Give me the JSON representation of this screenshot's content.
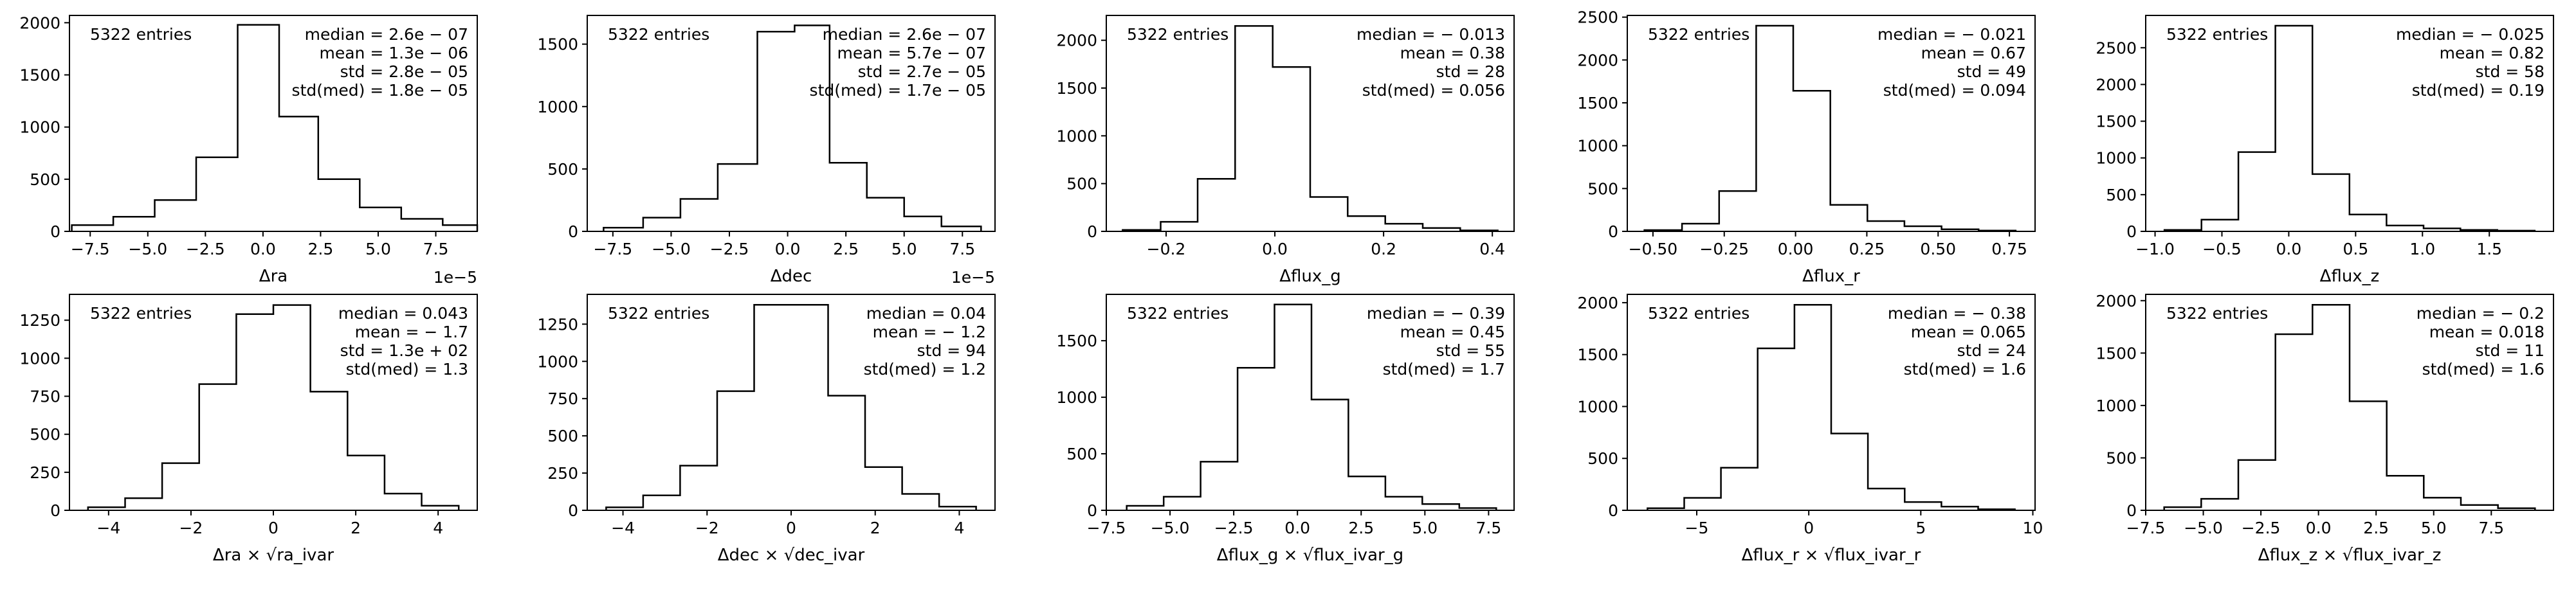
{
  "chart_data": [
    {
      "type": "histogram",
      "xlabel": "Δra",
      "x_offset_label": "1e−5",
      "bins": [
        -8.3,
        -6.5,
        -4.7,
        -2.9,
        -1.1,
        0.7,
        2.4,
        4.2,
        6.0,
        7.8,
        9.3
      ],
      "counts": [
        60,
        140,
        300,
        710,
        1980,
        1100,
        500,
        230,
        120,
        60
      ],
      "xlim": [
        -8.4,
        9.3
      ],
      "ylim": [
        0,
        2070
      ],
      "xticks": [
        {
          "v": -7.5,
          "label": "−7.5"
        },
        {
          "v": -5.0,
          "label": "−5.0"
        },
        {
          "v": -2.5,
          "label": "−2.5"
        },
        {
          "v": 0.0,
          "label": "0.0"
        },
        {
          "v": 2.5,
          "label": "2.5"
        },
        {
          "v": 5.0,
          "label": "5.0"
        },
        {
          "v": 7.5,
          "label": "7.5"
        }
      ],
      "yticks": [
        {
          "v": 0,
          "label": "0"
        },
        {
          "v": 500,
          "label": "500"
        },
        {
          "v": 1000,
          "label": "1000"
        },
        {
          "v": 1500,
          "label": "1500"
        },
        {
          "v": 2000,
          "label": "2000"
        }
      ],
      "entries": "5322 entries",
      "stats": [
        "median = 2.6e − 07",
        "mean = 1.3e − 06",
        "std = 2.8e − 05",
        "std(med) = 1.8e − 05"
      ]
    },
    {
      "type": "histogram",
      "xlabel": "Δdec",
      "x_offset_label": "1e−5",
      "bins": [
        -7.9,
        -6.2,
        -4.6,
        -3.0,
        -1.3,
        0.3,
        1.8,
        3.4,
        5.0,
        6.6,
        8.3
      ],
      "counts": [
        30,
        110,
        260,
        540,
        1600,
        1650,
        550,
        270,
        120,
        40
      ],
      "xlim": [
        -8.6,
        8.9
      ],
      "ylim": [
        0,
        1730
      ],
      "xticks": [
        {
          "v": -7.5,
          "label": "−7.5"
        },
        {
          "v": -5.0,
          "label": "−5.0"
        },
        {
          "v": -2.5,
          "label": "−2.5"
        },
        {
          "v": 0.0,
          "label": "0.0"
        },
        {
          "v": 2.5,
          "label": "2.5"
        },
        {
          "v": 5.0,
          "label": "5.0"
        },
        {
          "v": 7.5,
          "label": "7.5"
        }
      ],
      "yticks": [
        {
          "v": 0,
          "label": "0"
        },
        {
          "v": 500,
          "label": "500"
        },
        {
          "v": 1000,
          "label": "1000"
        },
        {
          "v": 1500,
          "label": "1500"
        }
      ],
      "entries": "5322 entries",
      "stats": [
        "median = 2.6e − 07",
        "mean = 5.7e − 07",
        "std = 2.7e − 05",
        "std(med) = 1.7e − 05"
      ]
    },
    {
      "type": "histogram",
      "xlabel": "Δflux_g",
      "x_offset_label": "",
      "bins": [
        -0.28,
        -0.21,
        -0.142,
        -0.073,
        -0.004,
        0.065,
        0.134,
        0.203,
        0.272,
        0.341,
        0.41
      ],
      "counts": [
        15,
        100,
        550,
        2150,
        1720,
        360,
        160,
        80,
        35,
        10
      ],
      "xlim": [
        -0.31,
        0.44
      ],
      "ylim": [
        0,
        2260
      ],
      "xticks": [
        {
          "v": -0.2,
          "label": "−0.2"
        },
        {
          "v": 0.0,
          "label": "0.0"
        },
        {
          "v": 0.2,
          "label": "0.2"
        },
        {
          "v": 0.4,
          "label": "0.4"
        }
      ],
      "yticks": [
        {
          "v": 0,
          "label": "0"
        },
        {
          "v": 500,
          "label": "500"
        },
        {
          "v": 1000,
          "label": "1000"
        },
        {
          "v": 1500,
          "label": "1500"
        },
        {
          "v": 2000,
          "label": "2000"
        }
      ],
      "entries": "5322 entries",
      "stats": [
        "median = − 0.013",
        "mean = 0.38",
        "std = 28",
        "std(med) = 0.056"
      ]
    },
    {
      "type": "histogram",
      "xlabel": "Δflux_r",
      "x_offset_label": "",
      "bins": [
        -0.53,
        -0.398,
        -0.268,
        -0.138,
        -0.008,
        0.122,
        0.252,
        0.382,
        0.512,
        0.642,
        0.772
      ],
      "counts": [
        15,
        90,
        470,
        2400,
        1640,
        310,
        120,
        60,
        25,
        10
      ],
      "xlim": [
        -0.59,
        0.84
      ],
      "ylim": [
        0,
        2520
      ],
      "xticks": [
        {
          "v": -0.5,
          "label": "−0.50"
        },
        {
          "v": -0.25,
          "label": "−0.25"
        },
        {
          "v": 0.0,
          "label": "0.00"
        },
        {
          "v": 0.25,
          "label": "0.25"
        },
        {
          "v": 0.5,
          "label": "0.50"
        },
        {
          "v": 0.75,
          "label": "0.75"
        }
      ],
      "yticks": [
        {
          "v": 0,
          "label": "0"
        },
        {
          "v": 500,
          "label": "500"
        },
        {
          "v": 1000,
          "label": "1000"
        },
        {
          "v": 1500,
          "label": "1500"
        },
        {
          "v": 2000,
          "label": "2000"
        },
        {
          "v": 2500,
          "label": "2500"
        }
      ],
      "entries": "5322 entries",
      "stats": [
        "median = − 0.021",
        "mean = 0.67",
        "std = 49",
        "std(med) = 0.094"
      ]
    },
    {
      "type": "histogram",
      "xlabel": "Δflux_z",
      "x_offset_label": "",
      "bins": [
        -0.93,
        -0.653,
        -0.377,
        -0.1,
        0.177,
        0.454,
        0.731,
        1.008,
        1.284,
        1.56,
        1.84
      ],
      "counts": [
        20,
        160,
        1080,
        2800,
        780,
        230,
        80,
        40,
        20,
        10
      ],
      "xlim": [
        -1.07,
        1.98
      ],
      "ylim": [
        0,
        2940
      ],
      "xticks": [
        {
          "v": -1.0,
          "label": "−1.0"
        },
        {
          "v": -0.5,
          "label": "−0.5"
        },
        {
          "v": 0.0,
          "label": "0.0"
        },
        {
          "v": 0.5,
          "label": "0.5"
        },
        {
          "v": 1.0,
          "label": "1.0"
        },
        {
          "v": 1.5,
          "label": "1.5"
        }
      ],
      "yticks": [
        {
          "v": 0,
          "label": "0"
        },
        {
          "v": 500,
          "label": "500"
        },
        {
          "v": 1000,
          "label": "1000"
        },
        {
          "v": 1500,
          "label": "1500"
        },
        {
          "v": 2000,
          "label": "2000"
        },
        {
          "v": 2500,
          "label": "2500"
        }
      ],
      "entries": "5322 entries",
      "stats": [
        "median = − 0.025",
        "mean = 0.82",
        "std = 58",
        "std(med) = 0.19"
      ]
    },
    {
      "type": "histogram",
      "xlabel": "Δra × √ra_ivar",
      "x_offset_label": "",
      "bins": [
        -4.5,
        -3.6,
        -2.7,
        -1.8,
        -0.9,
        0.0,
        0.9,
        1.8,
        2.7,
        3.6,
        4.5
      ],
      "counts": [
        20,
        80,
        310,
        830,
        1290,
        1350,
        780,
        360,
        110,
        30
      ],
      "xlim": [
        -4.95,
        4.95
      ],
      "ylim": [
        0,
        1420
      ],
      "xticks": [
        {
          "v": -4,
          "label": "−4"
        },
        {
          "v": -2,
          "label": "−2"
        },
        {
          "v": 0,
          "label": "0"
        },
        {
          "v": 2,
          "label": "2"
        },
        {
          "v": 4,
          "label": "4"
        }
      ],
      "yticks": [
        {
          "v": 0,
          "label": "0"
        },
        {
          "v": 250,
          "label": "250"
        },
        {
          "v": 500,
          "label": "500"
        },
        {
          "v": 750,
          "label": "750"
        },
        {
          "v": 1000,
          "label": "1000"
        },
        {
          "v": 1250,
          "label": "1250"
        }
      ],
      "entries": "5322 entries",
      "stats": [
        "median = 0.043",
        "mean = − 1.7",
        "std = 1.3e + 02",
        "std(med) = 1.3"
      ]
    },
    {
      "type": "histogram",
      "xlabel": "Δdec × √dec_ivar",
      "x_offset_label": "",
      "bins": [
        -4.4,
        -3.52,
        -2.64,
        -1.76,
        -0.88,
        0.0,
        0.88,
        1.76,
        2.64,
        3.52,
        4.4
      ],
      "counts": [
        20,
        100,
        300,
        800,
        1380,
        1380,
        770,
        290,
        110,
        25
      ],
      "xlim": [
        -4.85,
        4.85
      ],
      "ylim": [
        0,
        1450
      ],
      "xticks": [
        {
          "v": -4,
          "label": "−4"
        },
        {
          "v": -2,
          "label": "−2"
        },
        {
          "v": 0,
          "label": "0"
        },
        {
          "v": 2,
          "label": "2"
        },
        {
          "v": 4,
          "label": "4"
        }
      ],
      "yticks": [
        {
          "v": 0,
          "label": "0"
        },
        {
          "v": 250,
          "label": "250"
        },
        {
          "v": 500,
          "label": "500"
        },
        {
          "v": 750,
          "label": "750"
        },
        {
          "v": 1000,
          "label": "1000"
        },
        {
          "v": 1250,
          "label": "1250"
        }
      ],
      "entries": "5322 entries",
      "stats": [
        "median = 0.04",
        "mean = − 1.2",
        "std = 94",
        "std(med) = 1.2"
      ]
    },
    {
      "type": "histogram",
      "xlabel": "Δflux_g × √flux_ivar_g",
      "x_offset_label": "",
      "bins": [
        -6.7,
        -5.25,
        -3.8,
        -2.35,
        -0.9,
        0.55,
        2.0,
        3.45,
        4.9,
        6.35,
        7.8
      ],
      "counts": [
        40,
        120,
        430,
        1260,
        1820,
        980,
        300,
        120,
        55,
        20
      ],
      "xlim": [
        -7.5,
        8.5
      ],
      "ylim": [
        0,
        1910
      ],
      "xticks": [
        {
          "v": -7.5,
          "label": "−7.5"
        },
        {
          "v": -5.0,
          "label": "−5.0"
        },
        {
          "v": -2.5,
          "label": "−2.5"
        },
        {
          "v": 0.0,
          "label": "0.0"
        },
        {
          "v": 2.5,
          "label": "2.5"
        },
        {
          "v": 5.0,
          "label": "5.0"
        },
        {
          "v": 7.5,
          "label": "7.5"
        }
      ],
      "yticks": [
        {
          "v": 0,
          "label": "0"
        },
        {
          "v": 500,
          "label": "500"
        },
        {
          "v": 1000,
          "label": "1000"
        },
        {
          "v": 1500,
          "label": "1500"
        }
      ],
      "entries": "5322 entries",
      "stats": [
        "median = − 0.39",
        "mean = 0.45",
        "std = 55",
        "std(med) = 1.7"
      ]
    },
    {
      "type": "histogram",
      "xlabel": "Δflux_r × √flux_ivar_r",
      "x_offset_label": "",
      "bins": [
        -7.2,
        -5.56,
        -3.92,
        -2.28,
        -0.64,
        1.0,
        2.64,
        4.28,
        5.92,
        7.56,
        9.2
      ],
      "counts": [
        20,
        120,
        410,
        1560,
        1980,
        740,
        210,
        80,
        35,
        10
      ],
      "xlim": [
        -8.1,
        10.1
      ],
      "ylim": [
        0,
        2080
      ],
      "xticks": [
        {
          "v": -5,
          "label": "−5"
        },
        {
          "v": 0,
          "label": "0"
        },
        {
          "v": 5,
          "label": "5"
        },
        {
          "v": 10,
          "label": "10"
        }
      ],
      "yticks": [
        {
          "v": 0,
          "label": "0"
        },
        {
          "v": 500,
          "label": "500"
        },
        {
          "v": 1000,
          "label": "1000"
        },
        {
          "v": 1500,
          "label": "1500"
        },
        {
          "v": 2000,
          "label": "2000"
        }
      ],
      "entries": "5322 entries",
      "stats": [
        "median = − 0.38",
        "mean = 0.065",
        "std = 24",
        "std(med) = 1.6"
      ]
    },
    {
      "type": "histogram",
      "xlabel": "Δflux_z × √flux_ivar_z",
      "x_offset_label": "",
      "bins": [
        -6.7,
        -5.09,
        -3.48,
        -1.87,
        -0.26,
        1.35,
        2.96,
        4.57,
        6.18,
        7.79,
        9.4
      ],
      "counts": [
        30,
        110,
        480,
        1680,
        1960,
        1040,
        330,
        120,
        50,
        20
      ],
      "xlim": [
        -7.5,
        10.2
      ],
      "ylim": [
        0,
        2060
      ],
      "xticks": [
        {
          "v": -7.5,
          "label": "−7.5"
        },
        {
          "v": -5.0,
          "label": "−5.0"
        },
        {
          "v": -2.5,
          "label": "−2.5"
        },
        {
          "v": 0.0,
          "label": "0.0"
        },
        {
          "v": 2.5,
          "label": "2.5"
        },
        {
          "v": 5.0,
          "label": "5.0"
        },
        {
          "v": 7.5,
          "label": "7.5"
        }
      ],
      "yticks": [
        {
          "v": 0,
          "label": "0"
        },
        {
          "v": 500,
          "label": "500"
        },
        {
          "v": 1000,
          "label": "1000"
        },
        {
          "v": 1500,
          "label": "1500"
        },
        {
          "v": 2000,
          "label": "2000"
        }
      ],
      "entries": "5322 entries",
      "stats": [
        "median = − 0.2",
        "mean = 0.018",
        "std = 11",
        "std(med) = 1.6"
      ]
    }
  ]
}
